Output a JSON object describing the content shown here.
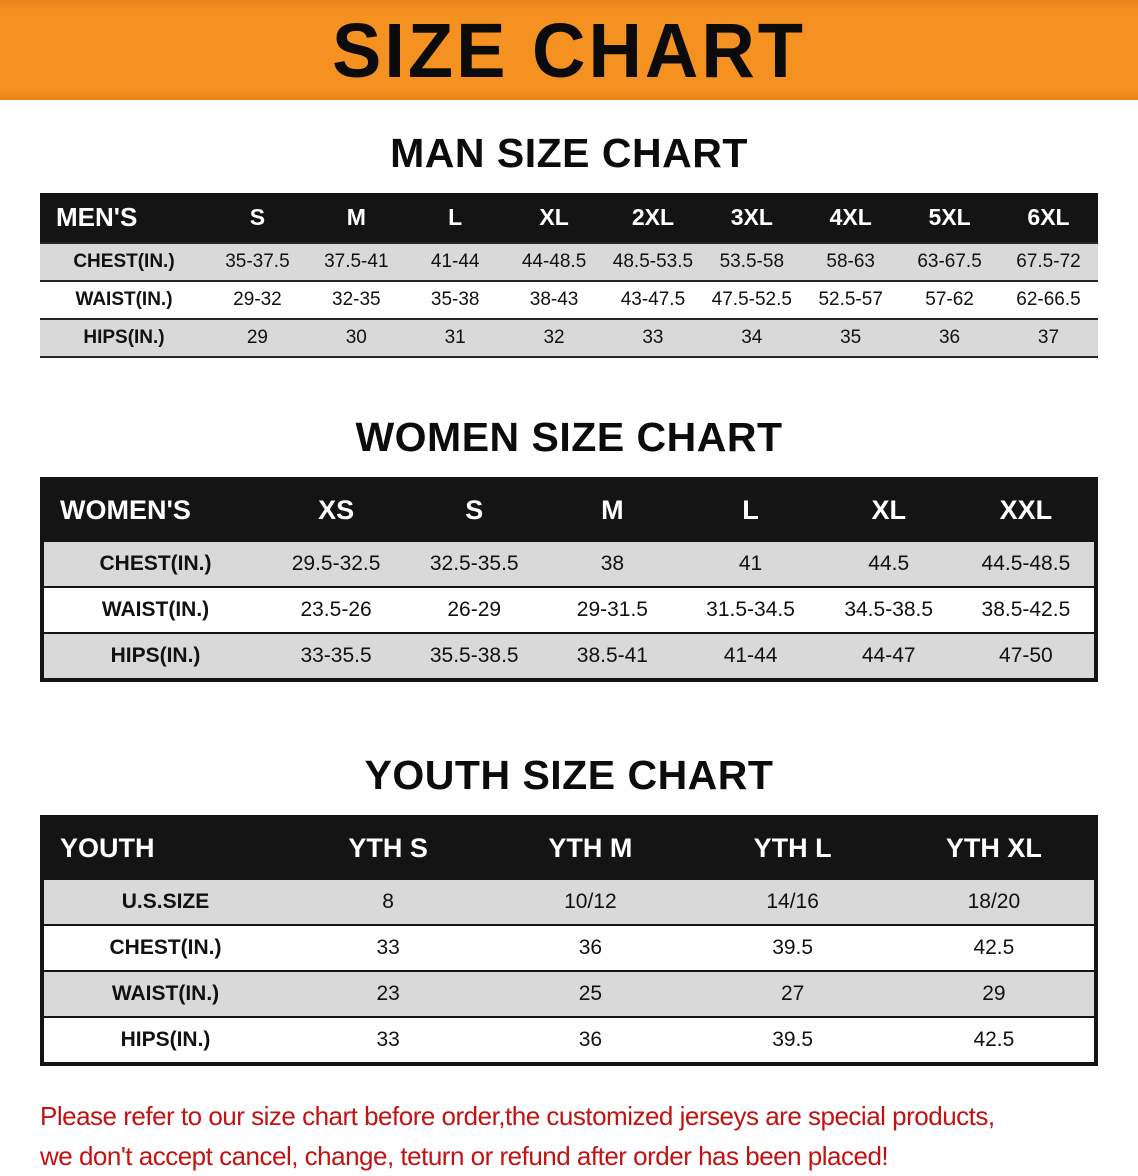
{
  "banner": {
    "title": "SIZE CHART",
    "bg_color": "#f59120"
  },
  "men": {
    "heading": "MAN SIZE CHART",
    "table": {
      "header": [
        "MEN'S",
        "S",
        "M",
        "L",
        "XL",
        "2XL",
        "3XL",
        "4XL",
        "5XL",
        "6XL"
      ],
      "rows": [
        [
          "CHEST(IN.)",
          "35-37.5",
          "37.5-41",
          "41-44",
          "44-48.5",
          "48.5-53.5",
          "53.5-58",
          "58-63",
          "63-67.5",
          "67.5-72"
        ],
        [
          "WAIST(IN.)",
          "29-32",
          "32-35",
          "35-38",
          "38-43",
          "43-47.5",
          "47.5-52.5",
          "52.5-57",
          "57-62",
          "62-66.5"
        ],
        [
          "HIPS(IN.)",
          "29",
          "30",
          "31",
          "32",
          "33",
          "34",
          "35",
          "36",
          "37"
        ]
      ]
    }
  },
  "women": {
    "heading": "WOMEN SIZE CHART",
    "table": {
      "header": [
        "WOMEN'S",
        "XS",
        "S",
        "M",
        "L",
        "XL",
        "XXL"
      ],
      "rows": [
        [
          "CHEST(IN.)",
          "29.5-32.5",
          "32.5-35.5",
          "38",
          "41",
          "44.5",
          "44.5-48.5"
        ],
        [
          "WAIST(IN.)",
          "23.5-26",
          "26-29",
          "29-31.5",
          "31.5-34.5",
          "34.5-38.5",
          "38.5-42.5"
        ],
        [
          "HIPS(IN.)",
          "33-35.5",
          "35.5-38.5",
          "38.5-41",
          "41-44",
          "44-47",
          "47-50"
        ]
      ]
    }
  },
  "youth": {
    "heading": "YOUTH SIZE CHART",
    "table": {
      "header": [
        "YOUTH",
        "YTH S",
        "YTH M",
        "YTH L",
        "YTH XL"
      ],
      "rows": [
        [
          "U.S.SIZE",
          "8",
          "10/12",
          "14/16",
          "18/20"
        ],
        [
          "CHEST(IN.)",
          "33",
          "36",
          "39.5",
          "42.5"
        ],
        [
          "WAIST(IN.)",
          "23",
          "25",
          "27",
          "29"
        ],
        [
          "HIPS(IN.)",
          "33",
          "36",
          "39.5",
          "42.5"
        ]
      ]
    }
  },
  "disclaimer": {
    "line1": "Please refer to our size chart before order,the customized jerseys are special products,",
    "line2": "we don't accept cancel, change, teturn or refund after order has been placed!",
    "text_color": "#c31212"
  },
  "colors": {
    "header_row_bg": "#141414",
    "alt_row_bg": "#d9d9d9",
    "banner_bg": "#f59120"
  }
}
